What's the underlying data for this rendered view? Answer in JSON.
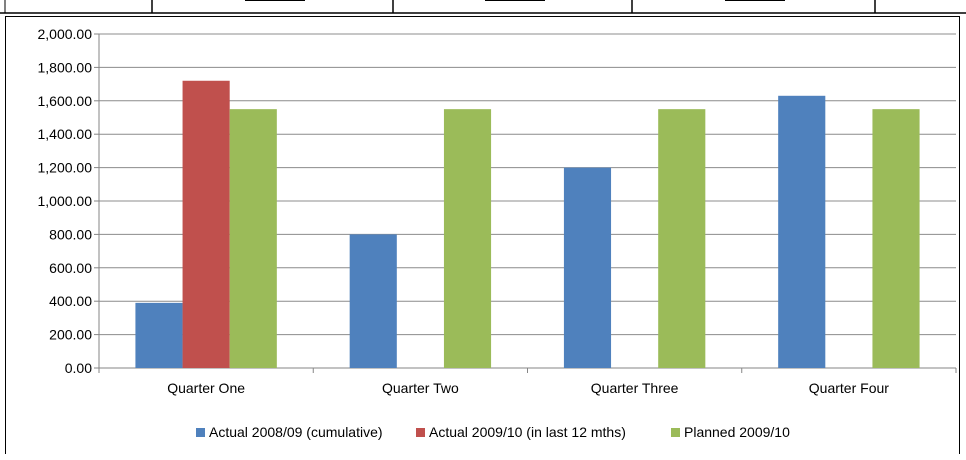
{
  "chart_data": {
    "type": "bar",
    "title": "",
    "xlabel": "",
    "ylabel": "",
    "ylim": [
      0,
      2000
    ],
    "yticks": [
      "0.00",
      "200.00",
      "400.00",
      "600.00",
      "800.00",
      "1,000.00",
      "1,200.00",
      "1,400.00",
      "1,600.00",
      "1,800.00",
      "2,000.00"
    ],
    "ytick_values": [
      0,
      200,
      400,
      600,
      800,
      1000,
      1200,
      1400,
      1600,
      1800,
      2000
    ],
    "grid": true,
    "legend": "bottom",
    "categories": [
      "Quarter One",
      "Quarter Two",
      "Quarter Three",
      "Quarter Four"
    ],
    "series": [
      {
        "name": "Actual 2008/09 (cumulative)",
        "color": "#4F81BD",
        "values": [
          390,
          800,
          1200,
          1630
        ]
      },
      {
        "name": "Actual 2009/10 (in last 12 mths)",
        "color": "#C0504D",
        "values": [
          1720,
          null,
          null,
          null
        ]
      },
      {
        "name": "Planned 2009/10",
        "color": "#9BBB59",
        "values": [
          1550,
          1550,
          1550,
          1550
        ]
      }
    ]
  }
}
